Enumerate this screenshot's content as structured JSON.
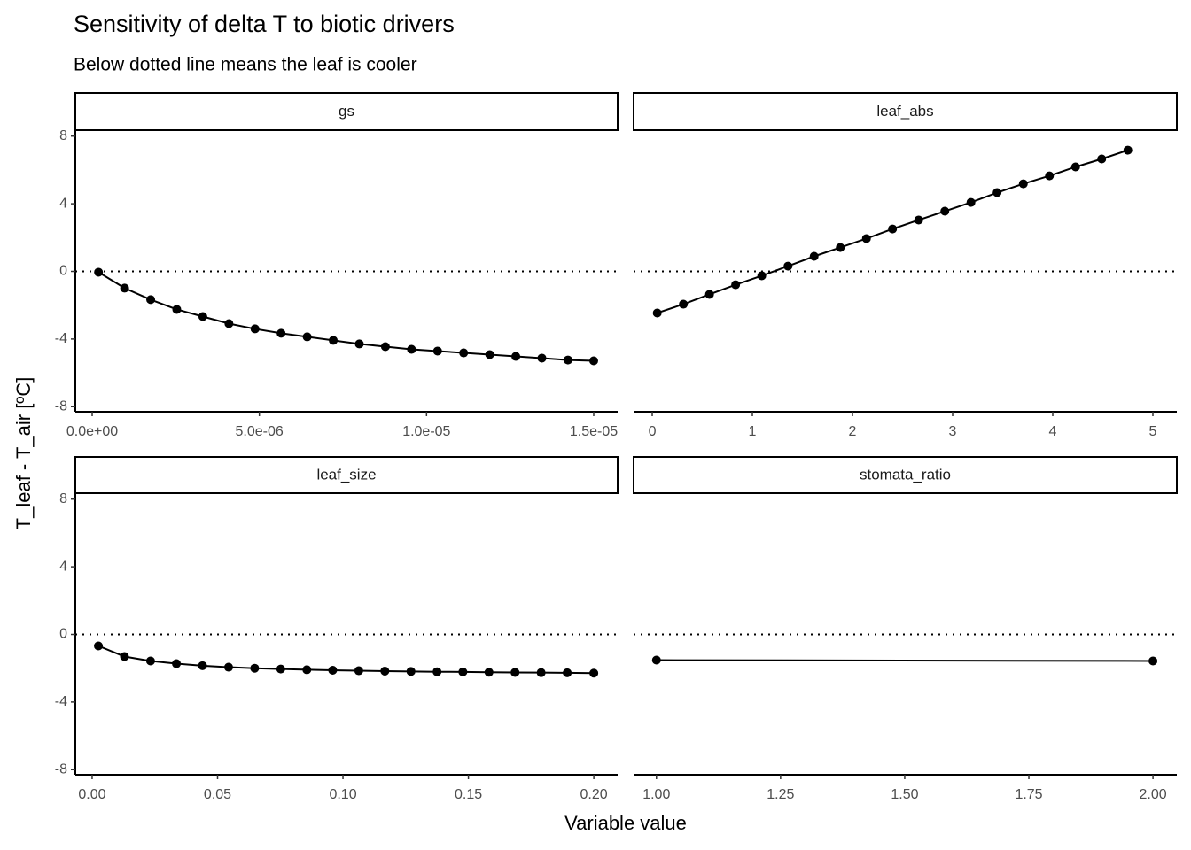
{
  "chart_data": {
    "type": "facet",
    "title": "Sensitivity of delta T to biotic drivers",
    "subtitle": "Below dotted line means the leaf is cooler",
    "x_label": "Variable value",
    "y_label": "T_leaf - T_air [ºC]",
    "ylim": [
      -8.3,
      8.3
    ],
    "yticks": [
      -8,
      -4,
      0,
      4,
      8
    ],
    "hline": 0,
    "color": "#000000",
    "panels": [
      {
        "type": "line",
        "strip": "gs",
        "x": [
          1.9e-07,
          9.7e-07,
          1.75e-06,
          2.53e-06,
          3.31e-06,
          4.09e-06,
          4.87e-06,
          5.65e-06,
          6.43e-06,
          7.21e-06,
          7.99e-06,
          8.77e-06,
          9.55e-06,
          1.033e-05,
          1.111e-05,
          1.189e-05,
          1.267e-05,
          1.345e-05,
          1.423e-05,
          1.5e-05
        ],
        "values": [
          -0.05,
          -0.99,
          -1.67,
          -2.25,
          -2.67,
          -3.09,
          -3.4,
          -3.66,
          -3.87,
          -4.08,
          -4.29,
          -4.45,
          -4.61,
          -4.71,
          -4.82,
          -4.92,
          -5.03,
          -5.13,
          -5.24,
          -5.29
        ],
        "xlim": [
          -5.04e-07,
          1.5716e-05
        ],
        "xticks": [
          {
            "value": 0,
            "label": "0.0e+00"
          },
          {
            "value": 5e-06,
            "label": "5.0e-06"
          },
          {
            "value": 1e-05,
            "label": "1.0e-05"
          },
          {
            "value": 1.5e-05,
            "label": "1.5e-05"
          }
        ]
      },
      {
        "type": "line",
        "strip": "leaf_abs",
        "x": [
          0.05,
          0.311,
          0.572,
          0.833,
          1.094,
          1.356,
          1.617,
          1.878,
          2.139,
          2.4,
          2.661,
          2.922,
          3.183,
          3.444,
          3.706,
          3.967,
          4.228,
          4.489,
          4.75
        ],
        "values": [
          -2.46,
          -1.94,
          -1.36,
          -0.79,
          -0.26,
          0.31,
          0.89,
          1.41,
          1.94,
          2.51,
          3.04,
          3.56,
          4.08,
          4.66,
          5.18,
          5.65,
          6.18,
          6.65,
          7.17
        ],
        "xlim": [
          -0.186,
          5.239
        ],
        "xticks": [
          0,
          1,
          2,
          3,
          4,
          5
        ]
      },
      {
        "type": "line",
        "strip": "leaf_size",
        "x": [
          0.0025,
          0.0129,
          0.0233,
          0.0336,
          0.044,
          0.0544,
          0.0648,
          0.0752,
          0.0856,
          0.0959,
          0.1063,
          0.1167,
          0.1271,
          0.1375,
          0.1478,
          0.1582,
          0.1686,
          0.179,
          0.1894,
          0.2
        ],
        "values": [
          -0.68,
          -1.31,
          -1.57,
          -1.73,
          -1.85,
          -1.94,
          -2.0,
          -2.05,
          -2.09,
          -2.12,
          -2.15,
          -2.17,
          -2.19,
          -2.21,
          -2.22,
          -2.24,
          -2.25,
          -2.26,
          -2.27,
          -2.29
        ],
        "xlim": [
          -0.0067,
          0.2095
        ],
        "xticks": [
          {
            "value": 0,
            "label": "0.00"
          },
          {
            "value": 0.05,
            "label": "0.05"
          },
          {
            "value": 0.1,
            "label": "0.10"
          },
          {
            "value": 0.15,
            "label": "0.15"
          },
          {
            "value": 0.2,
            "label": "0.20"
          }
        ]
      },
      {
        "type": "line",
        "strip": "stomata_ratio",
        "x": [
          1,
          2
        ],
        "values": [
          -1.52,
          -1.57
        ],
        "xlim": [
          0.954,
          2.048
        ],
        "xticks": [
          {
            "value": 1,
            "label": "1.00"
          },
          {
            "value": 1.25,
            "label": "1.25"
          },
          {
            "value": 1.5,
            "label": "1.50"
          },
          {
            "value": 1.75,
            "label": "1.75"
          },
          {
            "value": 2,
            "label": "2.00"
          }
        ]
      }
    ]
  }
}
